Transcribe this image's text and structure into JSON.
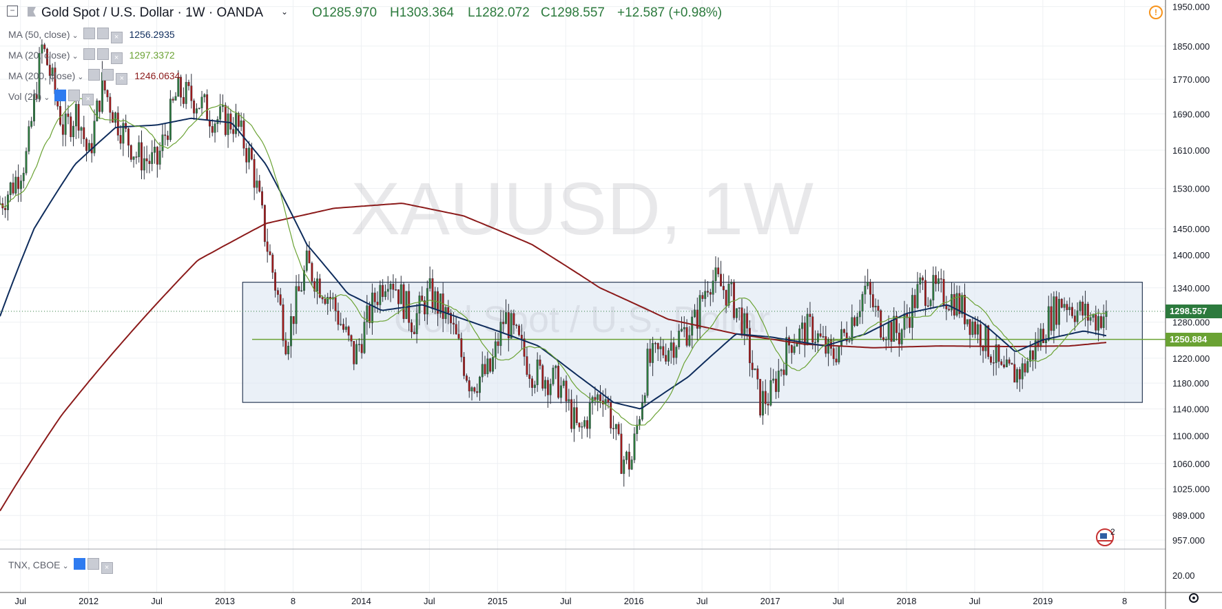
{
  "header": {
    "collapse_icon": "minus-square-icon",
    "flag_icon": "flag-icon",
    "symbol": "Gold Spot / U.S. Dollar · 1W · OANDA",
    "open": "O1285.970",
    "high": "H1303.364",
    "low": "L1282.072",
    "close": "C1298.557",
    "change": "+12.587 (+0.98%)",
    "alert_icon": "alert-circle-icon"
  },
  "indicators": [
    {
      "label": "MA (50, close)",
      "value": "1256.2935",
      "color": "#0e2c5c"
    },
    {
      "label": "MA (20, close)",
      "value": "1297.3372",
      "color": "#6aa233"
    },
    {
      "label": "MA (200, close)",
      "value": "1246.0634",
      "color": "#8b1a1a"
    },
    {
      "label": "Vol (20)",
      "value": "",
      "color": "#787b86"
    }
  ],
  "lower_pane": {
    "label": "TNX, CBOE",
    "axis_label": "20.00"
  },
  "watermark": {
    "line1": "XAUUSD, 1W",
    "line2": "Gold Spot / U.S. Dollar"
  },
  "price_boxes": {
    "last": "1298.557",
    "level": "1250.884"
  },
  "colors": {
    "up": "#2c7a3d",
    "down": "#a31a1a",
    "box_fill": "#dce6f2",
    "box_border": "#2a3a55",
    "hline": "#6aa233"
  },
  "misc": {
    "news_badge": "2",
    "settings_icon": "gear-icon"
  },
  "chart_data": {
    "type": "candlestick",
    "price_axis": [
      "1950.000",
      "1850.000",
      "1770.000",
      "1690.000",
      "1610.000",
      "1530.000",
      "1450.000",
      "1400.000",
      "1340.000",
      "1280.000",
      "1220.000",
      "1180.000",
      "1140.000",
      "1100.000",
      "1060.000",
      "1025.000",
      "989.000",
      "957.000"
    ],
    "time_axis": [
      "Jul",
      "2012",
      "Jul",
      "2013",
      "8",
      "2014",
      "Jul",
      "2015",
      "Jul",
      "2016",
      "Jul",
      "2017",
      "Jul",
      "2018",
      "Jul",
      "2019",
      "8"
    ],
    "x_range": [
      2011.35,
      2019.9
    ],
    "ylim": [
      950,
      1960
    ],
    "close_anchors": [
      [
        2011.35,
        1500
      ],
      [
        2011.45,
        1540
      ],
      [
        2011.55,
        1600
      ],
      [
        2011.66,
        1850
      ],
      [
        2011.72,
        1780
      ],
      [
        2011.82,
        1650
      ],
      [
        2011.92,
        1700
      ],
      [
        2012.0,
        1590
      ],
      [
        2012.1,
        1760
      ],
      [
        2012.2,
        1680
      ],
      [
        2012.35,
        1600
      ],
      [
        2012.5,
        1580
      ],
      [
        2012.65,
        1740
      ],
      [
        2012.8,
        1720
      ],
      [
        2012.92,
        1680
      ],
      [
        2013.08,
        1670
      ],
      [
        2013.2,
        1580
      ],
      [
        2013.3,
        1430
      ],
      [
        2013.45,
        1250
      ],
      [
        2013.6,
        1380
      ],
      [
        2013.78,
        1320
      ],
      [
        2013.95,
        1220
      ],
      [
        2014.1,
        1320
      ],
      [
        2014.2,
        1370
      ],
      [
        2014.38,
        1280
      ],
      [
        2014.5,
        1330
      ],
      [
        2014.65,
        1280
      ],
      [
        2014.8,
        1180
      ],
      [
        2014.95,
        1200
      ],
      [
        2015.05,
        1290
      ],
      [
        2015.25,
        1200
      ],
      [
        2015.45,
        1180
      ],
      [
        2015.6,
        1100
      ],
      [
        2015.7,
        1150
      ],
      [
        2015.78,
        1170
      ],
      [
        2015.9,
        1070
      ],
      [
        2015.98,
        1060
      ],
      [
        2016.1,
        1210
      ],
      [
        2016.25,
        1240
      ],
      [
        2016.45,
        1280
      ],
      [
        2016.55,
        1360
      ],
      [
        2016.7,
        1330
      ],
      [
        2016.8,
        1280
      ],
      [
        2016.92,
        1150
      ],
      [
        2017.0,
        1160
      ],
      [
        2017.15,
        1250
      ],
      [
        2017.3,
        1270
      ],
      [
        2017.45,
        1220
      ],
      [
        2017.55,
        1260
      ],
      [
        2017.7,
        1340
      ],
      [
        2017.8,
        1280
      ],
      [
        2017.95,
        1260
      ],
      [
        2018.1,
        1340
      ],
      [
        2018.25,
        1330
      ],
      [
        2018.35,
        1320
      ],
      [
        2018.45,
        1290
      ],
      [
        2018.55,
        1260
      ],
      [
        2018.65,
        1220
      ],
      [
        2018.7,
        1190
      ],
      [
        2018.85,
        1200
      ],
      [
        2018.95,
        1240
      ],
      [
        2019.05,
        1290
      ],
      [
        2019.15,
        1320
      ],
      [
        2019.25,
        1300
      ],
      [
        2019.38,
        1285
      ],
      [
        2019.48,
        1298.557
      ]
    ],
    "series": [
      {
        "name": "MA (50, close)",
        "color": "#0e2c5c",
        "last": 1256.2935
      },
      {
        "name": "MA (20, close)",
        "color": "#6aa233",
        "last": 1297.3372
      },
      {
        "name": "MA (200, close)",
        "color": "#8b1a1a",
        "last": 1246.0634
      }
    ],
    "ma50_anchors": [
      [
        2011.35,
        1290
      ],
      [
        2011.6,
        1450
      ],
      [
        2011.9,
        1580
      ],
      [
        2012.2,
        1660
      ],
      [
        2012.5,
        1665
      ],
      [
        2012.75,
        1680
      ],
      [
        2013.05,
        1670
      ],
      [
        2013.3,
        1580
      ],
      [
        2013.6,
        1420
      ],
      [
        2013.9,
        1330
      ],
      [
        2014.15,
        1300
      ],
      [
        2014.45,
        1310
      ],
      [
        2014.75,
        1285
      ],
      [
        2015.0,
        1265
      ],
      [
        2015.3,
        1240
      ],
      [
        2015.6,
        1190
      ],
      [
        2015.85,
        1150
      ],
      [
        2016.05,
        1140
      ],
      [
        2016.4,
        1190
      ],
      [
        2016.75,
        1260
      ],
      [
        2017.0,
        1255
      ],
      [
        2017.4,
        1240
      ],
      [
        2017.7,
        1260
      ],
      [
        2018.0,
        1295
      ],
      [
        2018.3,
        1310
      ],
      [
        2018.55,
        1280
      ],
      [
        2018.8,
        1230
      ],
      [
        2019.0,
        1250
      ],
      [
        2019.3,
        1265
      ],
      [
        2019.48,
        1256.29
      ]
    ],
    "ma200_anchors": [
      [
        2011.35,
        995
      ],
      [
        2011.8,
        1130
      ],
      [
        2012.3,
        1260
      ],
      [
        2012.8,
        1390
      ],
      [
        2013.3,
        1460
      ],
      [
        2013.8,
        1490
      ],
      [
        2014.3,
        1500
      ],
      [
        2014.75,
        1475
      ],
      [
        2015.25,
        1420
      ],
      [
        2015.75,
        1340
      ],
      [
        2016.25,
        1285
      ],
      [
        2016.75,
        1260
      ],
      [
        2017.25,
        1243
      ],
      [
        2017.75,
        1237
      ],
      [
        2018.25,
        1240
      ],
      [
        2018.75,
        1239
      ],
      [
        2019.2,
        1240
      ],
      [
        2019.48,
        1246.06
      ]
    ],
    "rect": {
      "x0": 2013.13,
      "x1": 2019.73,
      "y0": 1150,
      "y1": 1350
    },
    "hline": 1250.884,
    "last_price": 1298.557
  }
}
